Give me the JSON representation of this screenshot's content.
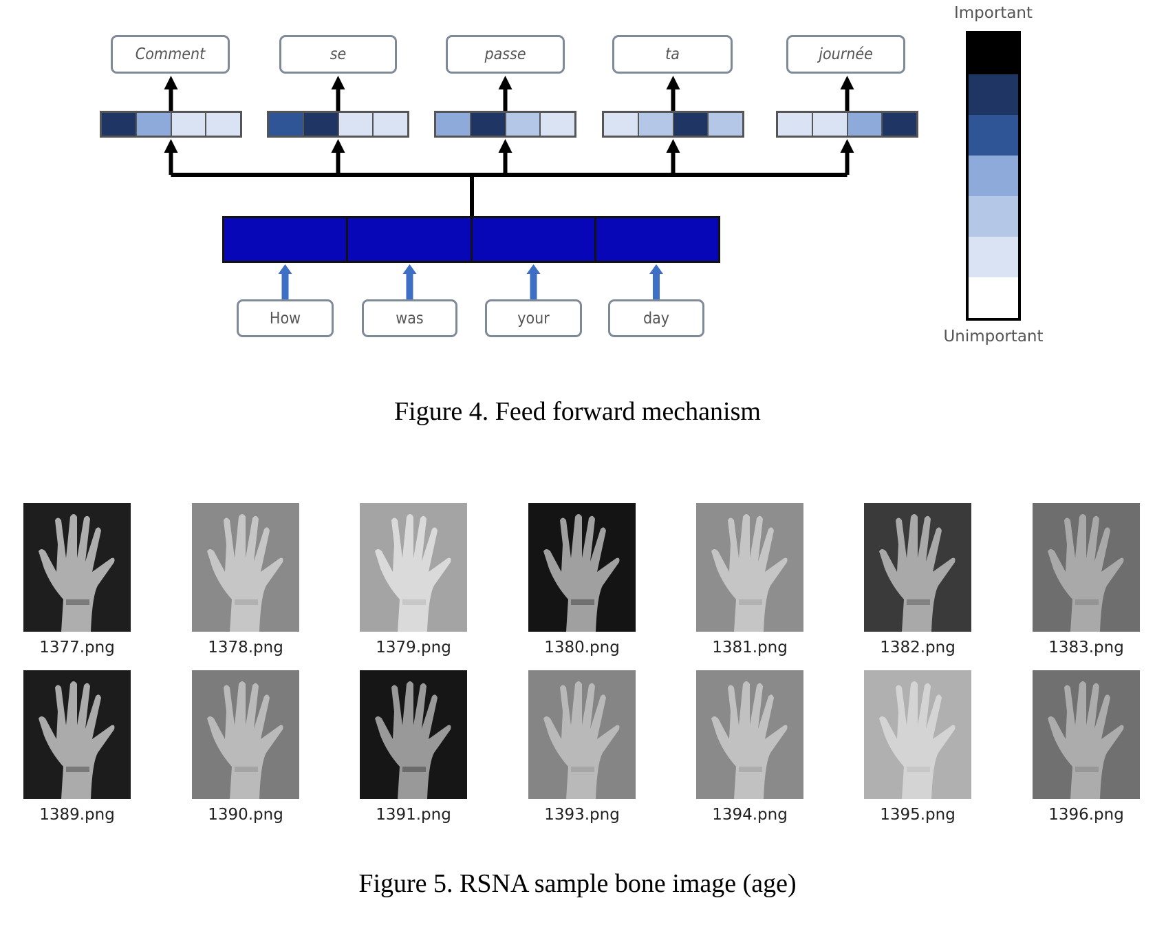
{
  "figure4": {
    "caption": "Figure 4. Feed forward mechanism",
    "outputs": [
      {
        "word": "Comment",
        "cells": [
          "#1f3564",
          "#8eaadb",
          "#dae3f3",
          "#dae3f3"
        ]
      },
      {
        "word": "se",
        "cells": [
          "#2f5597",
          "#1f3564",
          "#dae3f3",
          "#dae3f3"
        ]
      },
      {
        "word": "passe",
        "cells": [
          "#8eaadb",
          "#1f3564",
          "#b4c7e7",
          "#dae3f3"
        ]
      },
      {
        "word": "ta",
        "cells": [
          "#dae3f3",
          "#b4c7e7",
          "#1f3564",
          "#b4c7e7"
        ]
      },
      {
        "word": "journée",
        "cells": [
          "#dae3f3",
          "#dae3f3",
          "#8eaadb",
          "#1f3564"
        ]
      }
    ],
    "inputs": [
      "How",
      "was",
      "your",
      "day"
    ],
    "encoder_color": "#0707b8",
    "legend": {
      "top_label": "Important",
      "bottom_label": "Unimportant",
      "bands": [
        "#000000",
        "#1f3564",
        "#2f5597",
        "#8eaadb",
        "#b4c7e7",
        "#dae3f3",
        "#ffffff"
      ]
    }
  },
  "figure5": {
    "caption": "Figure 5. RSNA sample bone image (age)",
    "rows": [
      [
        {
          "file": "1377.png",
          "bg": "#1e1e1e",
          "hand": "#c8c8c8"
        },
        {
          "file": "1378.png",
          "bg": "#8a8a8a",
          "hand": "#d0d0d0"
        },
        {
          "file": "1379.png",
          "bg": "#a4a4a4",
          "hand": "#e4e4e4"
        },
        {
          "file": "1380.png",
          "bg": "#141414",
          "hand": "#b8b8b8"
        },
        {
          "file": "1381.png",
          "bg": "#8e8e8e",
          "hand": "#cfcfcf"
        },
        {
          "file": "1382.png",
          "bg": "#3a3a3a",
          "hand": "#bdbdbd"
        },
        {
          "file": "1383.png",
          "bg": "#6e6e6e",
          "hand": "#b4b4b4"
        }
      ],
      [
        {
          "file": "1389.png",
          "bg": "#1c1c1c",
          "hand": "#c4c4c4"
        },
        {
          "file": "1390.png",
          "bg": "#7c7c7c",
          "hand": "#c6c6c6"
        },
        {
          "file": "1391.png",
          "bg": "#161616",
          "hand": "#b0b0b0"
        },
        {
          "file": "1393.png",
          "bg": "#858585",
          "hand": "#c2c2c2"
        },
        {
          "file": "1394.png",
          "bg": "#8a8a8a",
          "hand": "#cacaca"
        },
        {
          "file": "1395.png",
          "bg": "#b0b0b0",
          "hand": "#dadada"
        },
        {
          "file": "1396.png",
          "bg": "#707070",
          "hand": "#b6b6b6"
        }
      ]
    ]
  }
}
